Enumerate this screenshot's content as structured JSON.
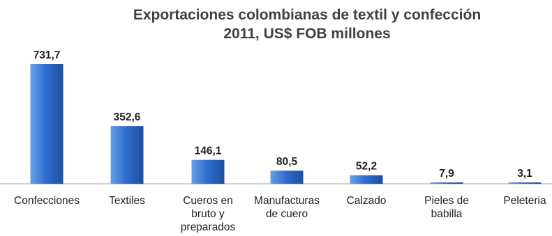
{
  "chart_data": {
    "type": "bar",
    "title": "Exportaciones colombianas de textil y confección",
    "subtitle": "2011, US$ FOB millones",
    "categories": [
      [
        "Confecciones"
      ],
      [
        "Textiles"
      ],
      [
        "Cueros en",
        "bruto y",
        "preparados"
      ],
      [
        "Manufacturas",
        "de cuero"
      ],
      [
        "Calzado"
      ],
      [
        "Pieles de",
        "babilla"
      ],
      [
        "Peleteria"
      ]
    ],
    "values": [
      731.7,
      352.6,
      146.1,
      80.5,
      52.2,
      7.9,
      3.1
    ],
    "data_labels": [
      "731,7",
      "352,6",
      "146,1",
      "80,5",
      "52,2",
      "7,9",
      "3,1"
    ],
    "ylim": [
      0,
      731.7
    ],
    "grid": false,
    "legend": "none",
    "colors": {
      "bar_top": "#6aa0e8",
      "bar_mid": "#2f6fd0",
      "bar_bottom": "#1f4f9e",
      "axis": "#a0a0a0"
    }
  }
}
